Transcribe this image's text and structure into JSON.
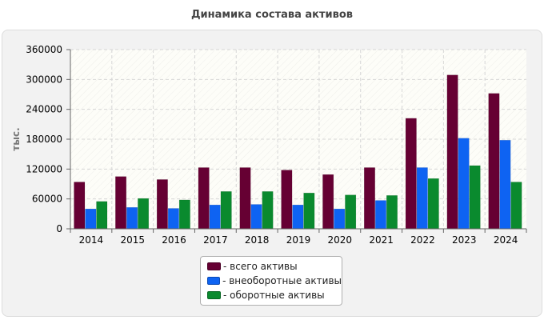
{
  "chart_data": {
    "type": "bar",
    "title": "Динамика состава активов",
    "xlabel": "",
    "ylabel": "тыс.",
    "ylim": [
      0,
      360000
    ],
    "yticks": [
      "0",
      "60000",
      "120000",
      "180000",
      "240000",
      "300000",
      "360000"
    ],
    "ytick_values": [
      0,
      60000,
      120000,
      180000,
      240000,
      300000,
      360000
    ],
    "categories": [
      "2014",
      "2015",
      "2016",
      "2017",
      "2018",
      "2019",
      "2020",
      "2021",
      "2022",
      "2023",
      "2024"
    ],
    "series": [
      {
        "name": "всего активы",
        "label": "- всего активы",
        "color": "#660033",
        "values": [
          94000,
          105000,
          99000,
          123000,
          123000,
          118000,
          109000,
          123000,
          222000,
          309000,
          272000
        ]
      },
      {
        "name": "внеоборотные активы",
        "label": "- внеоборотные активы",
        "color": "#0e63f2",
        "values": [
          40000,
          43000,
          41000,
          48000,
          49000,
          48000,
          40000,
          57000,
          123000,
          182000,
          178000
        ]
      },
      {
        "name": "оборотные активы",
        "label": "- оборотные активы",
        "color": "#0a8a2e",
        "values": [
          55000,
          61000,
          58000,
          75000,
          75000,
          72000,
          68000,
          67000,
          101000,
          127000,
          94000
        ]
      }
    ],
    "grid": true,
    "legend_position": "bottom-center"
  }
}
